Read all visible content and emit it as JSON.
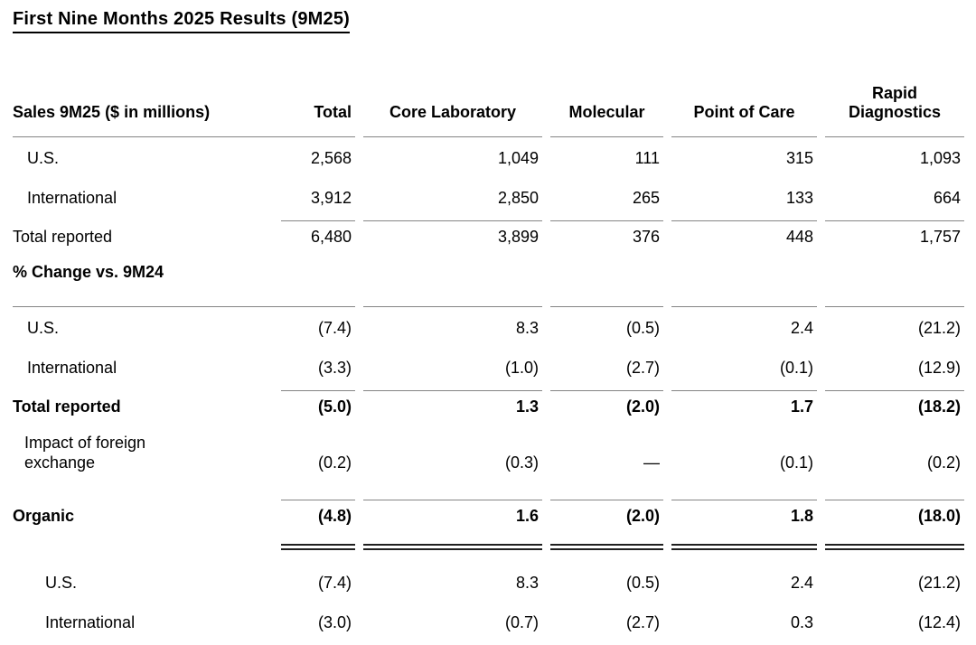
{
  "page_title": "First Nine Months 2025 Results (9M25)",
  "table": {
    "header": {
      "label": "Sales 9M25 ($ in millions)",
      "total": "Total",
      "core_laboratory": "Core Laboratory",
      "molecular": "Molecular",
      "point_of_care": "Point of Care",
      "rapid_line1": "Rapid",
      "rapid_line2": "Diagnostics"
    },
    "sales": {
      "us": {
        "label": "U.S.",
        "total": "2,568",
        "core": "1,049",
        "molecular": "111",
        "poc": "315",
        "rapid": "1,093"
      },
      "international": {
        "label": "International",
        "total": "3,912",
        "core": "2,850",
        "molecular": "265",
        "poc": "133",
        "rapid": "664"
      },
      "total_reported": {
        "label": "Total reported",
        "total": "6,480",
        "core": "3,899",
        "molecular": "376",
        "poc": "448",
        "rapid": "1,757"
      }
    },
    "pct_change": {
      "section_label": "% Change vs. 9M24",
      "us": {
        "label": "U.S.",
        "total": "(7.4)",
        "core": "8.3",
        "molecular": "(0.5)",
        "poc": "2.4",
        "rapid": "(21.2)"
      },
      "international": {
        "label": "International",
        "total": "(3.3)",
        "core": "(1.0)",
        "molecular": "(2.7)",
        "poc": "(0.1)",
        "rapid": "(12.9)"
      },
      "total_reported": {
        "label": "Total reported",
        "total": "(5.0)",
        "core": "1.3",
        "molecular": "(2.0)",
        "poc": "1.7",
        "rapid": "(18.2)"
      },
      "fx": {
        "label": "Impact of foreign exchange",
        "total": "(0.2)",
        "core": "(0.3)",
        "molecular": "—",
        "poc": "(0.1)",
        "rapid": "(0.2)"
      },
      "organic": {
        "label": "Organic",
        "total": "(4.8)",
        "core": "1.6",
        "molecular": "(2.0)",
        "poc": "1.8",
        "rapid": "(18.0)"
      },
      "organic_us": {
        "label": "U.S.",
        "total": "(7.4)",
        "core": "8.3",
        "molecular": "(0.5)",
        "poc": "2.4",
        "rapid": "(21.2)"
      },
      "organic_international": {
        "label": "International",
        "total": "(3.0)",
        "core": "(0.7)",
        "molecular": "(2.7)",
        "poc": "0.3",
        "rapid": "(12.4)"
      }
    }
  },
  "colors": {
    "text": "#000000",
    "single_rule": "#848484",
    "double_rule": "#1f1f1f"
  }
}
